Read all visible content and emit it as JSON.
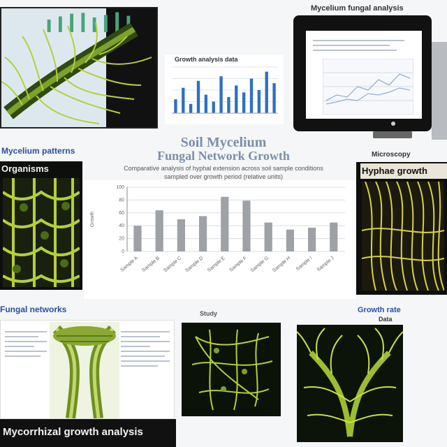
{
  "labels": {
    "top_left_caption": "Mycelium patterns",
    "left_panel_title": "Organisms",
    "right_panel_small": "Microscopy",
    "right_panel_title": "Hyphae growth",
    "mid_left_caption": "Fungal networks",
    "right_mid_caption": "Growth rate",
    "right_mid_sub": "Data",
    "center_small_caption": "Study",
    "bottom_banner": "Mycorrhizal growth analysis",
    "top_monitor_caption": "Mycelium fungal analysis",
    "chart_small_title": "Growth analysis data"
  },
  "main_title": {
    "line1": "Soil Mycelium",
    "line2": "Fungal Network Growth"
  },
  "subtitle": {
    "line1": "Comparative analysis of hyphal extension across soil sample conditions",
    "line2": "sampled over growth period (relative units)"
  },
  "colors": {
    "accent_green": "#b5cf3a",
    "dark_green": "#2f4a12",
    "bar_gray": "#9ea2a6",
    "bar_blue": "#2e6fc4",
    "label_blue": "#2a4fa0"
  },
  "chart_data": [
    {
      "type": "bar",
      "categories": [
        "Sample A",
        "Sample B",
        "Sample C",
        "Sample D",
        "Sample E",
        "Sample F",
        "Sample G",
        "Sample H",
        "Sample I",
        "Sample J"
      ],
      "values": [
        40,
        64,
        50,
        55,
        85,
        79,
        45,
        34,
        37,
        45
      ],
      "ylabel": "Growth",
      "ylim": [
        0,
        100
      ],
      "grid": true,
      "yticks": [
        "100",
        "80",
        "60",
        "40",
        "20",
        "0"
      ]
    },
    {
      "type": "bar",
      "values": [
        30,
        55,
        20,
        70,
        40,
        25,
        80,
        35,
        60,
        45,
        75,
        50,
        90,
        65
      ],
      "ylim": [
        0,
        100
      ],
      "grid": true
    },
    {
      "type": "bar",
      "values": [
        60,
        75,
        88,
        92,
        70,
        82,
        95,
        78
      ],
      "ylim": [
        0,
        100
      ],
      "grid": false
    }
  ]
}
